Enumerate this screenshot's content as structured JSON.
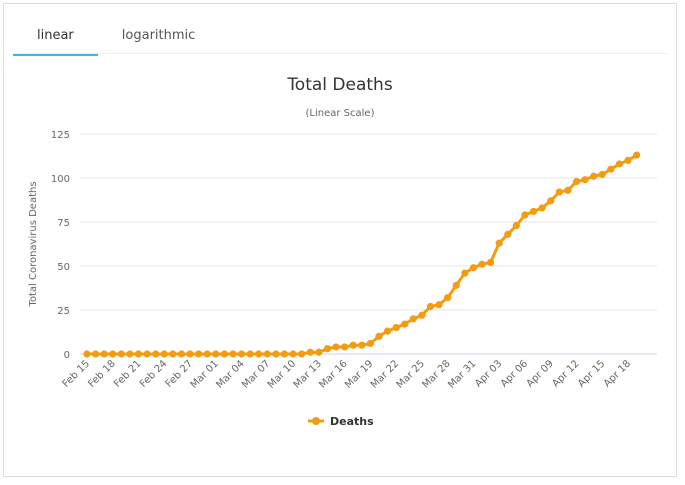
{
  "tabs": [
    {
      "label": "linear",
      "active": true
    },
    {
      "label": "logarithmic",
      "active": false
    }
  ],
  "chart_data": {
    "type": "line",
    "title": "Total Deaths",
    "subtitle": "(Linear Scale)",
    "ylabel": "Total Coronavirus Deaths",
    "xlabel": "",
    "ylim": [
      0,
      125
    ],
    "yticks": [
      0,
      25,
      50,
      75,
      100,
      125
    ],
    "grid": true,
    "legend_placement": "bottom",
    "color": "#f39c12",
    "x": [
      "Feb 15",
      "Feb 16",
      "Feb 17",
      "Feb 18",
      "Feb 19",
      "Feb 20",
      "Feb 21",
      "Feb 22",
      "Feb 23",
      "Feb 24",
      "Feb 25",
      "Feb 26",
      "Feb 27",
      "Feb 28",
      "Feb 29",
      "Mar 01",
      "Mar 02",
      "Mar 03",
      "Mar 04",
      "Mar 05",
      "Mar 06",
      "Mar 07",
      "Mar 08",
      "Mar 09",
      "Mar 10",
      "Mar 11",
      "Mar 12",
      "Mar 13",
      "Mar 14",
      "Mar 15",
      "Mar 16",
      "Mar 17",
      "Mar 18",
      "Mar 19",
      "Mar 20",
      "Mar 21",
      "Mar 22",
      "Mar 23",
      "Mar 24",
      "Mar 25",
      "Mar 26",
      "Mar 27",
      "Mar 28",
      "Mar 29",
      "Mar 30",
      "Mar 31",
      "Apr 01",
      "Apr 02",
      "Apr 03",
      "Apr 04",
      "Apr 05",
      "Apr 06",
      "Apr 07",
      "Apr 08",
      "Apr 09",
      "Apr 10",
      "Apr 11",
      "Apr 12",
      "Apr 13",
      "Apr 14",
      "Apr 15",
      "Apr 16",
      "Apr 17",
      "Apr 18",
      "Apr 19"
    ],
    "xtick_labels": [
      "Feb 15",
      "Feb 18",
      "Feb 21",
      "Feb 24",
      "Feb 27",
      "Mar 01",
      "Mar 04",
      "Mar 07",
      "Mar 10",
      "Mar 13",
      "Mar 16",
      "Mar 19",
      "Mar 22",
      "Mar 25",
      "Mar 28",
      "Mar 31",
      "Apr 03",
      "Apr 06",
      "Apr 09",
      "Apr 12",
      "Apr 15",
      "Apr 18"
    ],
    "series": [
      {
        "name": "Deaths",
        "values": [
          0,
          0,
          0,
          0,
          0,
          0,
          0,
          0,
          0,
          0,
          0,
          0,
          0,
          0,
          0,
          0,
          0,
          0,
          0,
          0,
          0,
          0,
          0,
          0,
          0,
          0,
          1,
          1,
          3,
          4,
          4,
          5,
          5,
          6,
          10,
          13,
          15,
          17,
          20,
          22,
          27,
          28,
          32,
          39,
          46,
          49,
          51,
          52,
          63,
          68,
          73,
          79,
          81,
          83,
          87,
          92,
          93,
          98,
          99,
          101,
          102,
          105,
          108,
          110,
          113
        ]
      }
    ]
  }
}
